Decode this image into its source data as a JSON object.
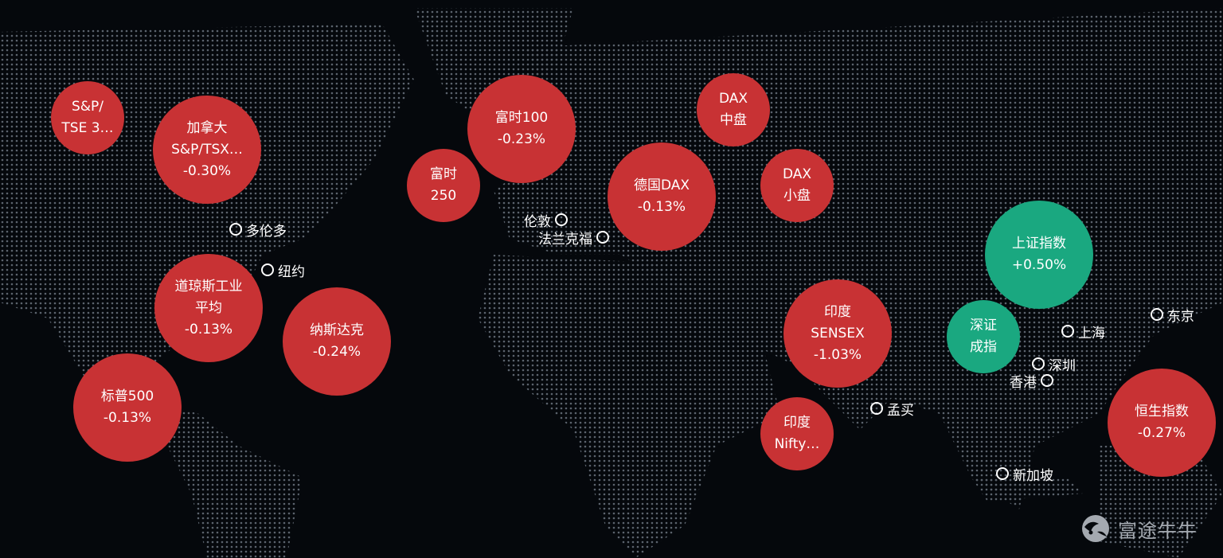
{
  "colors": {
    "down": "#c83234",
    "up": "#1aa880",
    "background": "#05080c",
    "map_dots": "#5b636d"
  },
  "bubbles": [
    {
      "name": "S&P/",
      "name2": "TSE 3…",
      "change": "",
      "dir": "down"
    },
    {
      "name": "加拿大",
      "name2": "S&P/TSX…",
      "change": "-0.30%",
      "dir": "down"
    },
    {
      "name": "富时100",
      "name2": "",
      "change": "-0.23%",
      "dir": "down"
    },
    {
      "name": "富时",
      "name2": "250",
      "change": "",
      "dir": "down"
    },
    {
      "name": "DAX",
      "name2": "中盘",
      "change": "",
      "dir": "down"
    },
    {
      "name": "德国DAX",
      "name2": "",
      "change": "-0.13%",
      "dir": "down"
    },
    {
      "name": "DAX",
      "name2": "小盘",
      "change": "",
      "dir": "down"
    },
    {
      "name": "上证指数",
      "name2": "",
      "change": "+0.50%",
      "dir": "up"
    },
    {
      "name": "深证",
      "name2": "成指",
      "change": "",
      "dir": "up"
    },
    {
      "name": "印度",
      "name2": "SENSEX",
      "change": "-1.03%",
      "dir": "down"
    },
    {
      "name": "印度",
      "name2": "Nifty…",
      "change": "",
      "dir": "down"
    },
    {
      "name": "恒生指数",
      "name2": "",
      "change": "-0.27%",
      "dir": "down"
    },
    {
      "name": "道琼斯工业",
      "name2": "平均",
      "change": "-0.13%",
      "dir": "down"
    },
    {
      "name": "纳斯达克",
      "name2": "",
      "change": "-0.24%",
      "dir": "down"
    },
    {
      "name": "标普500",
      "name2": "",
      "change": "-0.13%",
      "dir": "down"
    }
  ],
  "cities": [
    {
      "label": "多伦多"
    },
    {
      "label": "纽约"
    },
    {
      "label": "伦敦"
    },
    {
      "label": "法兰克福"
    },
    {
      "label": "东京"
    },
    {
      "label": "上海"
    },
    {
      "label": "深圳"
    },
    {
      "label": "香港"
    },
    {
      "label": "孟买"
    },
    {
      "label": "新加坡"
    }
  ],
  "watermark": {
    "text": "富途牛牛",
    "icon": "futu-logo-icon"
  }
}
